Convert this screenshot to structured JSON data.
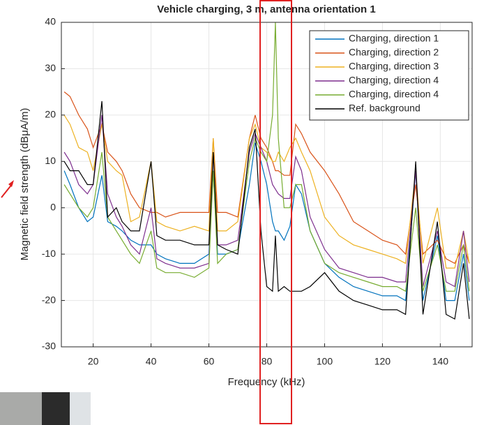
{
  "chart_data": {
    "type": "line",
    "title": "Vehicle charging, 3 m, antenna orientation 1",
    "xlabel": "Frequency (kHz)",
    "ylabel": "Magnetic field strength (dBμA/m)",
    "x": [
      10,
      12,
      15,
      18,
      20,
      23,
      25,
      28,
      30,
      33,
      36,
      40,
      42,
      45,
      50,
      55,
      60,
      61.5,
      63,
      66,
      70,
      74,
      76,
      78,
      80,
      82,
      83,
      84,
      86,
      88,
      90,
      92,
      95,
      100,
      105,
      110,
      115,
      120,
      125,
      128,
      131.5,
      134,
      139,
      142,
      145,
      148,
      150
    ],
    "series": [
      {
        "name": "Charging, direction 1",
        "color": "#0072bd",
        "values": [
          8,
          5,
          0,
          -3,
          -2,
          7,
          -3,
          -4,
          -5,
          -7,
          -8,
          -8,
          -10,
          -11,
          -12,
          -12,
          -10,
          8,
          -10,
          -10,
          -9,
          5,
          14,
          10,
          5,
          -3,
          -5,
          -5,
          -7,
          -4,
          5,
          3,
          -5,
          -12,
          -15,
          -17,
          -18,
          -19,
          -19,
          -20,
          8,
          -20,
          -6,
          -20,
          -20,
          -10,
          -20
        ]
      },
      {
        "name": "Charging, direction 2",
        "color": "#d95319",
        "values": [
          25,
          24,
          20,
          17,
          13,
          18,
          12,
          10,
          8,
          3,
          0,
          -1,
          -1,
          -2,
          -1,
          -1,
          -1,
          15,
          -1,
          -1,
          -2,
          15,
          20,
          15,
          13,
          10,
          8,
          8,
          7,
          7,
          18,
          16,
          12,
          8,
          3,
          -3,
          -5,
          -7,
          -8,
          -10,
          5,
          -10,
          -7,
          -11,
          -12,
          -8,
          -12
        ]
      },
      {
        "name": "Charging, direction 3",
        "color": "#edb120",
        "values": [
          20,
          18,
          13,
          12,
          8,
          18,
          10,
          8,
          7,
          -3,
          -2,
          10,
          -3,
          -4,
          -5,
          -4,
          -5,
          15,
          -5,
          -5,
          -3,
          15,
          18,
          13,
          12,
          10,
          10,
          12,
          10,
          13,
          15,
          12,
          8,
          -2,
          -6,
          -8,
          -9,
          -10,
          -11,
          -12,
          8,
          -12,
          0,
          -13,
          -13,
          -5,
          -12
        ]
      },
      {
        "name": "Charging, direction 4",
        "color": "#7e2f8e",
        "values": [
          12,
          10,
          5,
          3,
          5,
          20,
          3,
          -2,
          -4,
          -8,
          -10,
          0,
          -11,
          -12,
          -13,
          -13,
          -12,
          12,
          -8,
          -8,
          -7,
          12,
          16,
          13,
          10,
          5,
          4,
          3,
          2,
          2,
          11,
          8,
          -2,
          -9,
          -13,
          -14,
          -15,
          -15,
          -16,
          -16,
          8,
          -17,
          -5,
          -16,
          -17,
          -5,
          -16
        ]
      },
      {
        "name": "Charging, direction 4",
        "color": "#77ac30",
        "values": [
          5,
          3,
          0,
          -2,
          0,
          12,
          -2,
          -5,
          -7,
          -10,
          -12,
          -5,
          -13,
          -14,
          -14,
          -15,
          -13,
          8,
          -12,
          -10,
          -9,
          10,
          15,
          12,
          10,
          20,
          40,
          15,
          0,
          0,
          5,
          5,
          -5,
          -12,
          -14,
          -15,
          -16,
          -17,
          -17,
          -18,
          0,
          -18,
          -8,
          -18,
          -18,
          -8,
          -18
        ]
      },
      {
        "name": "Ref. background",
        "color": "#000000",
        "values": [
          10,
          8,
          8,
          5,
          5,
          23,
          -2,
          0,
          -3,
          -5,
          -5,
          10,
          -6,
          -7,
          -7,
          -8,
          -8,
          12,
          -8,
          -9,
          -10,
          13,
          17,
          -5,
          -17,
          -18,
          -6,
          -18,
          -17,
          -18,
          -18,
          -18,
          -17,
          -14,
          -18,
          -20,
          -21,
          -22,
          -22,
          -23,
          10,
          -23,
          -3,
          -23,
          -24,
          -12,
          -24
        ]
      }
    ],
    "xlim": [
      9,
      151
    ],
    "ylim": [
      -30,
      40
    ],
    "xticks": [
      20,
      40,
      60,
      80,
      100,
      120,
      140
    ],
    "yticks": [
      -30,
      -20,
      -10,
      0,
      10,
      20,
      30,
      40
    ],
    "grid": true,
    "legend": "top-right"
  }
}
